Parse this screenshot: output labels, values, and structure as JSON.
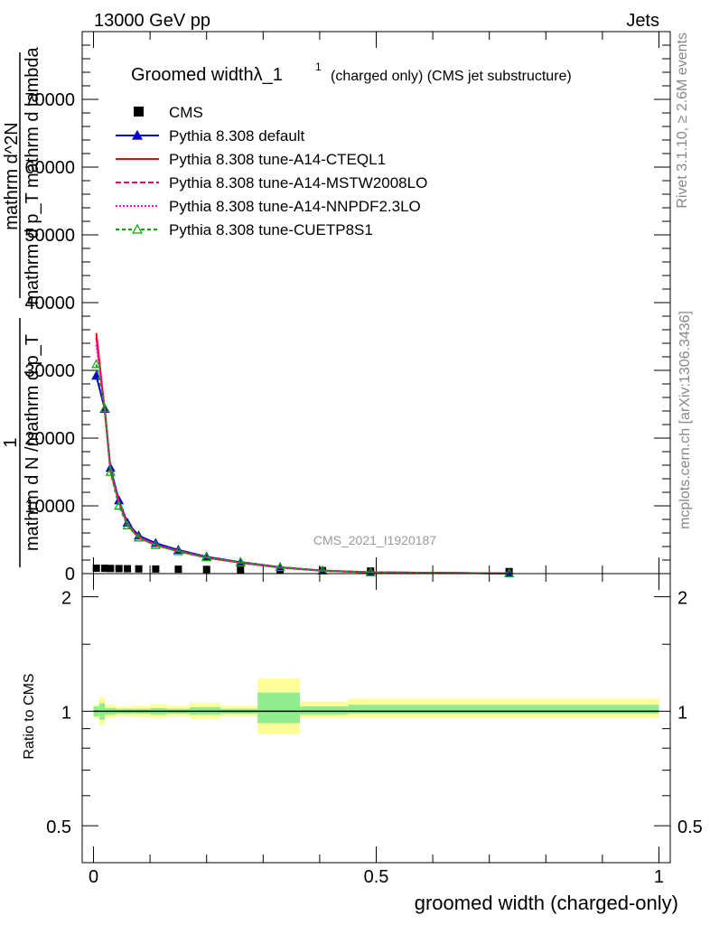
{
  "header": {
    "left": "13000 GeV pp",
    "right": "Jets"
  },
  "side_labels": {
    "rivet": "Rivet 3.1.10, ≥ 2.6M events",
    "mcplots": "mcplots.cern.ch [arXiv:1306.3436]"
  },
  "watermark": "CMS_2021_I1920187",
  "colors": {
    "cms": "#000000",
    "default": "#0000cc",
    "cteql1": "#ff0000",
    "mstw": "#ff0066",
    "nnpdf": "#ff00cc",
    "cuetp8s1": "#00aa00",
    "band_inner": "#90ee90",
    "band_outer": "#ffff99"
  },
  "chart_data": [
    {
      "type": "line",
      "panel": "main",
      "title_main": "Groomed widthλ_1",
      "title_sup": "1",
      "title_rest": "(charged only) (CMS jet substructure)",
      "xlabel": "groomed width (charged-only)",
      "ylabel_parts": [
        "1",
        "mathrm d N /mathrm d p_T",
        "mathrm d^2N",
        "mathrm d p_T mathrm d lambda"
      ],
      "xlim": [
        -0.02,
        1.02
      ],
      "ylim": [
        0,
        80000
      ],
      "yticks": [
        0,
        10000,
        20000,
        30000,
        40000,
        50000,
        60000,
        70000
      ],
      "ytick_labels": [
        "0",
        "10000",
        "20000",
        "30000",
        "40000",
        "50000",
        "60000",
        "70000"
      ],
      "legend_position": "top-left",
      "x": [
        0.005,
        0.02,
        0.03,
        0.045,
        0.06,
        0.08,
        0.11,
        0.15,
        0.2,
        0.26,
        0.33,
        0.405,
        0.49,
        0.735
      ],
      "series": [
        {
          "name": "CMS",
          "color_key": "cms",
          "marker": "square-filled",
          "values": [
            800,
            780,
            760,
            740,
            720,
            700,
            680,
            650,
            620,
            580,
            520,
            450,
            380,
            300
          ]
        },
        {
          "name": "Pythia 8.308 default",
          "color_key": "default",
          "marker": "triangle-filled",
          "dash": "",
          "values": [
            29200,
            24300,
            15600,
            10800,
            7500,
            5600,
            4500,
            3500,
            2500,
            1700,
            950,
            450,
            200,
            30
          ]
        },
        {
          "name": "Pythia 8.308 tune-A14-CTEQL1",
          "color_key": "cteql1",
          "marker": "",
          "dash": "",
          "values": [
            35500,
            24000,
            15200,
            10500,
            7200,
            5300,
            4200,
            3300,
            2350,
            1600,
            900,
            420,
            180,
            25
          ]
        },
        {
          "name": "Pythia 8.308 tune-A14-MSTW2008LO",
          "color_key": "mstw",
          "marker": "",
          "dash": "6,3",
          "values": [
            34800,
            24100,
            15300,
            10500,
            7300,
            5350,
            4250,
            3300,
            2400,
            1600,
            900,
            420,
            180,
            25
          ]
        },
        {
          "name": "Pythia 8.308 tune-A14-NNPDF2.3LO",
          "color_key": "nnpdf",
          "marker": "",
          "dash": "2,2",
          "values": [
            33800,
            24200,
            15400,
            10600,
            7300,
            5400,
            4300,
            3350,
            2400,
            1650,
            920,
            430,
            185,
            27
          ]
        },
        {
          "name": "Pythia 8.308 tune-CUETP8S1",
          "color_key": "cuetp8s1",
          "marker": "triangle-open",
          "dash": "4,3",
          "values": [
            30900,
            24400,
            15000,
            10000,
            7100,
            5300,
            4200,
            3300,
            2400,
            1650,
            930,
            440,
            190,
            28
          ]
        }
      ]
    },
    {
      "type": "area",
      "panel": "ratio",
      "ylabel": "Ratio to CMS",
      "xlabel": "groomed width (charged-only)",
      "ylim": [
        0.4,
        2.3
      ],
      "log_y": true,
      "yticks": [
        0.5,
        1,
        2
      ],
      "ytick_labels": [
        "0.5",
        "1",
        "2"
      ],
      "xticks": [
        0,
        0.5,
        1
      ],
      "xtick_labels": [
        "0",
        "0.5",
        "1"
      ],
      "bins": [
        {
          "x0": 0.0,
          "x1": 0.01,
          "inner": [
            0.97,
            1.03
          ],
          "outer": [
            0.96,
            1.04
          ]
        },
        {
          "x0": 0.01,
          "x1": 0.02,
          "inner": [
            0.95,
            1.05
          ],
          "outer": [
            0.92,
            1.09
          ]
        },
        {
          "x0": 0.02,
          "x1": 0.04,
          "inner": [
            0.98,
            1.02
          ],
          "outer": [
            0.96,
            1.04
          ]
        },
        {
          "x0": 0.04,
          "x1": 0.05,
          "inner": [
            0.985,
            1.015
          ],
          "outer": [
            0.97,
            1.03
          ]
        },
        {
          "x0": 0.05,
          "x1": 0.07,
          "inner": [
            0.985,
            1.015
          ],
          "outer": [
            0.97,
            1.03
          ]
        },
        {
          "x0": 0.07,
          "x1": 0.1,
          "inner": [
            0.985,
            1.015
          ],
          "outer": [
            0.965,
            1.035
          ]
        },
        {
          "x0": 0.1,
          "x1": 0.13,
          "inner": [
            0.98,
            1.02
          ],
          "outer": [
            0.96,
            1.045
          ]
        },
        {
          "x0": 0.13,
          "x1": 0.17,
          "inner": [
            0.985,
            1.015
          ],
          "outer": [
            0.97,
            1.035
          ]
        },
        {
          "x0": 0.17,
          "x1": 0.225,
          "inner": [
            0.98,
            1.025
          ],
          "outer": [
            0.955,
            1.05
          ]
        },
        {
          "x0": 0.225,
          "x1": 0.29,
          "inner": [
            0.985,
            1.015
          ],
          "outer": [
            0.97,
            1.035
          ]
        },
        {
          "x0": 0.29,
          "x1": 0.365,
          "inner": [
            0.93,
            1.12
          ],
          "outer": [
            0.87,
            1.22
          ]
        },
        {
          "x0": 0.365,
          "x1": 0.45,
          "inner": [
            0.98,
            1.03
          ],
          "outer": [
            0.96,
            1.06
          ]
        },
        {
          "x0": 0.45,
          "x1": 1.0,
          "inner": [
            0.985,
            1.04
          ],
          "outer": [
            0.96,
            1.08
          ]
        }
      ]
    }
  ]
}
